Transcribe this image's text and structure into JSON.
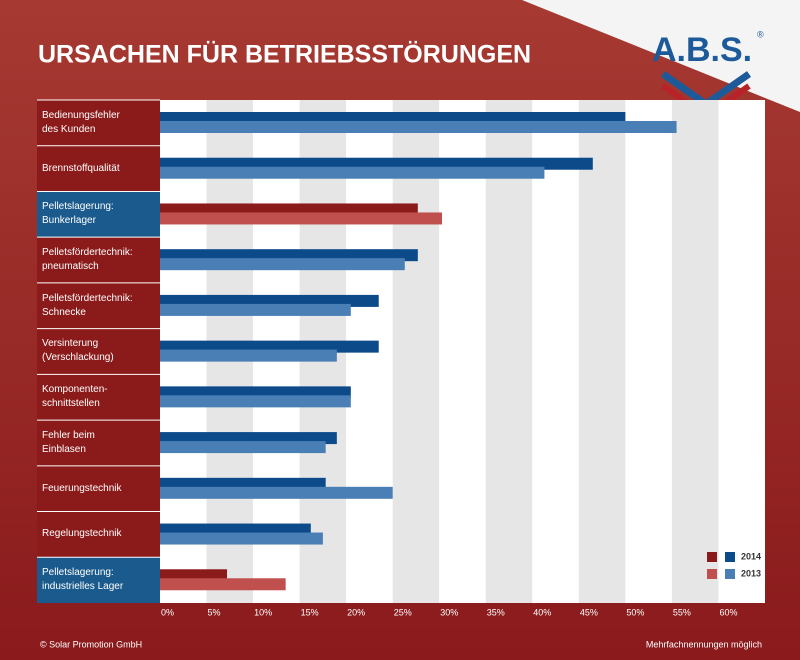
{
  "chart_data": {
    "type": "bar",
    "orientation": "horizontal",
    "title": "URSACHEN FÜR BETRIEBSSTÖRUNGEN",
    "logo": "A.B.S.",
    "logo_mark": "®",
    "source": "© Solar Promotion GmbH",
    "note": "Mehrfachnennungen möglich",
    "categories": [
      "Bedienungsfehler\ndes Kunden",
      "Brennstoffqualität",
      "Pelletslagerung:\nBunkerlager",
      "Pelletsfördertechnik:\npneumatisch",
      "Pelletsfördertechnik:\nSchnecke",
      "Versinterung\n(Verschlackung)",
      "Komponenten-\nschnittstellen",
      "Fehler beim\nEinblasen",
      "Feuerungstechnik",
      "Regelungstechnik",
      "Pelletslagerung:\nindustrielles Lager"
    ],
    "series": [
      {
        "name": "2014",
        "color": "#0d4a8a",
        "colors": [
          "#0d4a8a",
          "#0d4a8a",
          "#8b1a1a",
          "#0d4a8a",
          "#0d4a8a",
          "#0d4a8a",
          "#0d4a8a",
          "#0d4a8a",
          "#0d4a8a",
          "#0d4a8a",
          "#8b1a1a"
        ],
        "values": [
          50,
          46.5,
          27.7,
          27.7,
          23.5,
          23.5,
          20.5,
          19,
          17.8,
          16.2,
          7.2
        ]
      },
      {
        "name": "2013",
        "color": "#4a7fb5",
        "colors": [
          "#4a7fb5",
          "#4a7fb5",
          "#c0504d",
          "#4a7fb5",
          "#4a7fb5",
          "#4a7fb5",
          "#4a7fb5",
          "#4a7fb5",
          "#4a7fb5",
          "#4a7fb5",
          "#c0504d"
        ],
        "values": [
          55.5,
          41.3,
          30.3,
          26.3,
          20.5,
          19,
          20.5,
          17.8,
          25,
          17.5,
          13.5
        ]
      }
    ],
    "xlim": [
      0,
      65
    ],
    "xticks": [
      {
        "value": 0,
        "label": "0%"
      },
      {
        "value": 5,
        "label": "5%"
      },
      {
        "value": 10,
        "label": "10%"
      },
      {
        "value": 15,
        "label": "15%"
      },
      {
        "value": 20,
        "label": "20%"
      },
      {
        "value": 25,
        "label": "25%"
      },
      {
        "value": 30,
        "label": "30%"
      },
      {
        "value": 35,
        "label": "35%"
      },
      {
        "value": 40,
        "label": "40%"
      },
      {
        "value": 45,
        "label": "45%"
      },
      {
        "value": 50,
        "label": "50%"
      },
      {
        "value": 55,
        "label": "55%"
      },
      {
        "value": 60,
        "label": "60%"
      }
    ],
    "grid": true
  }
}
